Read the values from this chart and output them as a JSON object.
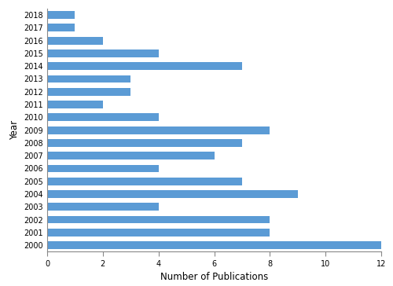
{
  "years": [
    2000,
    2001,
    2002,
    2003,
    2004,
    2005,
    2006,
    2007,
    2008,
    2009,
    2010,
    2011,
    2012,
    2013,
    2014,
    2015,
    2016,
    2017,
    2018
  ],
  "values": [
    12,
    8,
    8,
    4,
    9,
    7,
    4,
    6,
    7,
    8,
    4,
    2,
    3,
    3,
    7,
    4,
    2,
    1,
    1
  ],
  "bar_color": "#5B9BD5",
  "xlabel": "Number of Publications",
  "ylabel": "Year",
  "xlim": [
    0,
    12
  ],
  "xticks": [
    0,
    2,
    4,
    6,
    8,
    10,
    12
  ],
  "background_color": "#ffffff",
  "tick_fontsize": 7,
  "label_fontsize": 8.5,
  "bar_height": 0.6
}
